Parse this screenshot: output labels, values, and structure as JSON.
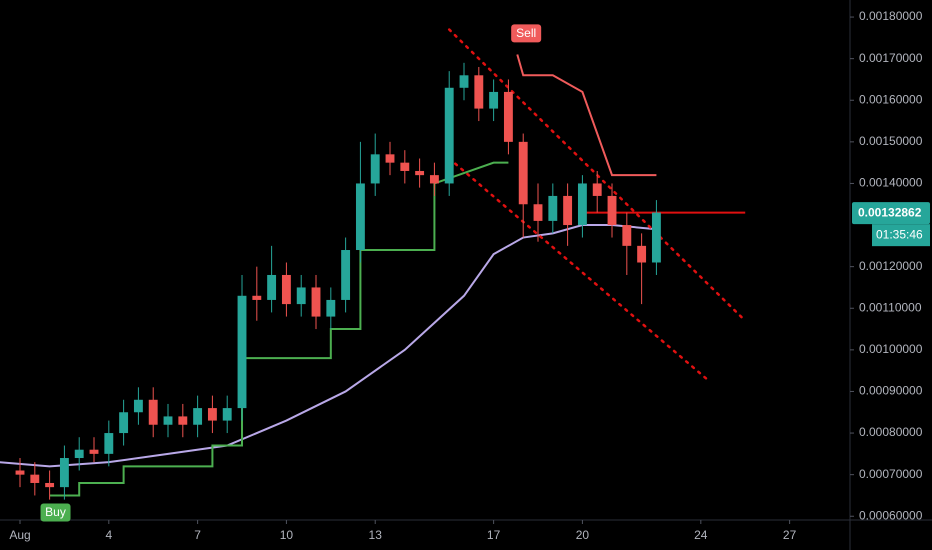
{
  "chart_data": {
    "type": "candlestick",
    "x": [
      1,
      1.5,
      2,
      2.5,
      3,
      3.5,
      4,
      4.5,
      5,
      5.5,
      6,
      6.5,
      7,
      7.5,
      8,
      8.5,
      9,
      9.5,
      10,
      10.5,
      11,
      11.5,
      12,
      12.5,
      13,
      13.5,
      14,
      14.5,
      15,
      15.5,
      16,
      16.5,
      17,
      17.5,
      18,
      18.5,
      19,
      19.5,
      20,
      20.5,
      21,
      21.5,
      22,
      22.5
    ],
    "open": [
      0.00071,
      0.0007,
      0.00068,
      0.00067,
      0.00074,
      0.00076,
      0.00075,
      0.0008,
      0.00085,
      0.00088,
      0.00082,
      0.00084,
      0.00082,
      0.00086,
      0.00083,
      0.00086,
      0.00113,
      0.00112,
      0.00118,
      0.00111,
      0.00115,
      0.00108,
      0.00112,
      0.00124,
      0.0014,
      0.00147,
      0.00145,
      0.00143,
      0.00142,
      0.0014,
      0.00163,
      0.00166,
      0.00158,
      0.00162,
      0.0015,
      0.00135,
      0.00131,
      0.00137,
      0.0013,
      0.0014,
      0.00137,
      0.0013,
      0.00125,
      0.00121
    ],
    "high": [
      0.00074,
      0.00073,
      0.00071,
      0.00077,
      0.00079,
      0.00079,
      0.00083,
      0.00088,
      0.00091,
      0.00091,
      0.00087,
      0.00087,
      0.00089,
      0.00089,
      0.00089,
      0.00118,
      0.0012,
      0.00125,
      0.00121,
      0.00118,
      0.00118,
      0.00115,
      0.00127,
      0.0015,
      0.00152,
      0.0015,
      0.00148,
      0.00146,
      0.00145,
      0.00167,
      0.00169,
      0.00168,
      0.00165,
      0.00165,
      0.00152,
      0.0014,
      0.0014,
      0.0014,
      0.00142,
      0.00143,
      0.0014,
      0.00133,
      0.00128,
      0.00136
    ],
    "low": [
      0.00067,
      0.00065,
      0.00064,
      0.00064,
      0.00071,
      0.00073,
      0.00072,
      0.00077,
      0.00082,
      0.00079,
      0.00079,
      0.00079,
      0.00079,
      0.0008,
      0.0008,
      0.00083,
      0.00107,
      0.00109,
      0.00108,
      0.00108,
      0.00105,
      0.00105,
      0.00109,
      0.00121,
      0.00137,
      0.00142,
      0.0014,
      0.00139,
      0.00137,
      0.00137,
      0.0016,
      0.00155,
      0.00155,
      0.00147,
      0.00127,
      0.00126,
      0.00128,
      0.00125,
      0.00127,
      0.00133,
      0.00127,
      0.00118,
      0.00111,
      0.00118
    ],
    "close": [
      0.0007,
      0.00068,
      0.00067,
      0.00074,
      0.00076,
      0.00075,
      0.0008,
      0.00085,
      0.00088,
      0.00082,
      0.00084,
      0.00082,
      0.00086,
      0.00083,
      0.00086,
      0.00113,
      0.00112,
      0.00118,
      0.00111,
      0.00115,
      0.00108,
      0.00112,
      0.00124,
      0.0014,
      0.00147,
      0.00145,
      0.00143,
      0.00142,
      0.0014,
      0.00163,
      0.00166,
      0.00158,
      0.00162,
      0.0015,
      0.00135,
      0.00131,
      0.00137,
      0.0013,
      0.0014,
      0.00137,
      0.0013,
      0.00125,
      0.00121,
      0.00133
    ],
    "up_color": "#26a69a",
    "down_color": "#ef5350",
    "lines": [
      {
        "color": "#b9a8e8",
        "x": [
          0.3,
          2,
          4,
          6,
          8,
          10,
          12,
          14,
          16,
          17,
          18,
          19,
          20,
          21,
          22.5
        ],
        "values": [
          0.00073,
          0.00072,
          0.00073,
          0.00075,
          0.00077,
          0.00083,
          0.0009,
          0.001,
          0.00113,
          0.00123,
          0.00127,
          0.00128,
          0.0013,
          0.0013,
          0.00129
        ]
      },
      {
        "color": "#4caf50",
        "x": [
          2,
          3,
          3,
          4.5,
          4.5,
          7.5,
          7.5,
          8.5,
          8.5,
          11.5,
          11.5,
          12.5,
          12.5,
          15,
          15,
          17,
          17.5
        ],
        "values": [
          0.00065,
          0.00065,
          0.00068,
          0.00068,
          0.00072,
          0.00072,
          0.00077,
          0.00077,
          0.00098,
          0.00098,
          0.00105,
          0.00105,
          0.00124,
          0.00124,
          0.0014,
          0.00145,
          0.00145
        ]
      },
      {
        "color": "#f05b5b",
        "x": [
          17.8,
          18,
          19,
          20,
          21,
          22.5
        ],
        "values": [
          0.00171,
          0.00166,
          0.00166,
          0.00162,
          0.00142,
          0.00142
        ]
      },
      {
        "color": "#e01010",
        "dotted": true,
        "x": [
          15.5,
          25.5
        ],
        "values": [
          0.00177,
          0.00107
        ]
      },
      {
        "color": "#e01010",
        "dotted": true,
        "x": [
          15.5,
          24.2
        ],
        "values": [
          0.00146,
          0.00093
        ]
      },
      {
        "color": "#e01010",
        "x": [
          20.1,
          25.5
        ],
        "values": [
          0.00133,
          0.00133
        ]
      }
    ],
    "annotations": [
      {
        "text": "Buy",
        "x": 2.2,
        "y": 0.00065,
        "color": "#4caf50",
        "below": true
      },
      {
        "text": "Sell",
        "x": 18.1,
        "y": 0.00172,
        "color": "#f05b5b",
        "below": false
      }
    ],
    "last_price": {
      "value": 0.00132862,
      "label": "0.00132862"
    },
    "countdown": "01:35:46",
    "xlim": [
      0.324,
      29.04
    ],
    "ylim": [
      0.000591,
      0.001841
    ],
    "xticks": [
      {
        "value": 1,
        "label": "Aug"
      },
      4,
      7,
      10,
      13,
      17,
      20,
      24,
      27
    ],
    "yticks": [
      {
        "value": 0.0006,
        "label": "0.00060000"
      },
      {
        "value": 0.0007,
        "label": "0.00070000"
      },
      {
        "value": 0.0008,
        "label": "0.00080000"
      },
      {
        "value": 0.0009,
        "label": "0.00090000"
      },
      {
        "value": 0.001,
        "label": "0.00100000"
      },
      {
        "value": 0.0011,
        "label": "0.00110000"
      },
      {
        "value": 0.0012,
        "label": "0.00120000"
      },
      {
        "value": 0.0014,
        "label": "0.00140000"
      },
      {
        "value": 0.0015,
        "label": "0.00150000"
      },
      {
        "value": 0.0016,
        "label": "0.00160000"
      },
      {
        "value": 0.0017,
        "label": "0.00170000"
      },
      {
        "value": 0.0018,
        "label": "0.00180000"
      }
    ]
  }
}
